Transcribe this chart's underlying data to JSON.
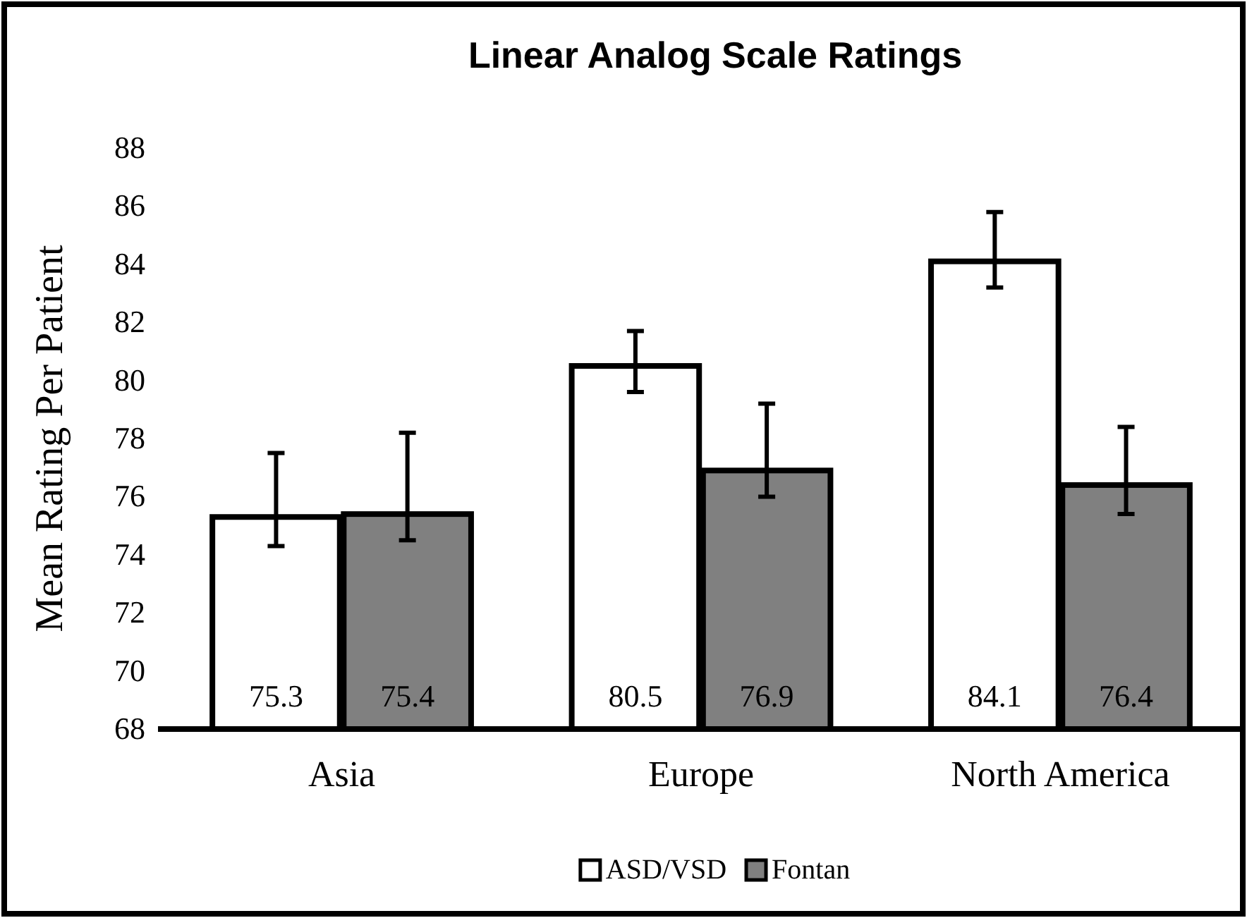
{
  "chart_data": {
    "type": "bar",
    "title": "Linear Analog Scale Ratings",
    "ylabel": "Mean Rating Per Patient",
    "categories": [
      "Asia",
      "Europe",
      "North America"
    ],
    "series": [
      {
        "name": "ASD/VSD",
        "color": "#ffffff",
        "values": [
          75.3,
          80.5,
          84.1
        ],
        "errors": [
          [
            74.3,
            77.5
          ],
          [
            79.6,
            81.7
          ],
          [
            83.2,
            85.8
          ]
        ]
      },
      {
        "name": "Fontan",
        "color": "#808080",
        "values": [
          75.4,
          76.9,
          76.4
        ],
        "errors": [
          [
            74.5,
            78.2
          ],
          [
            76.0,
            79.2
          ],
          [
            75.4,
            78.4
          ]
        ]
      }
    ],
    "ylim": [
      68,
      88
    ],
    "yticks": [
      68,
      70,
      72,
      74,
      76,
      78,
      80,
      82,
      84,
      86,
      88
    ],
    "data_labels": true,
    "legend": "bottom",
    "grid": false
  }
}
